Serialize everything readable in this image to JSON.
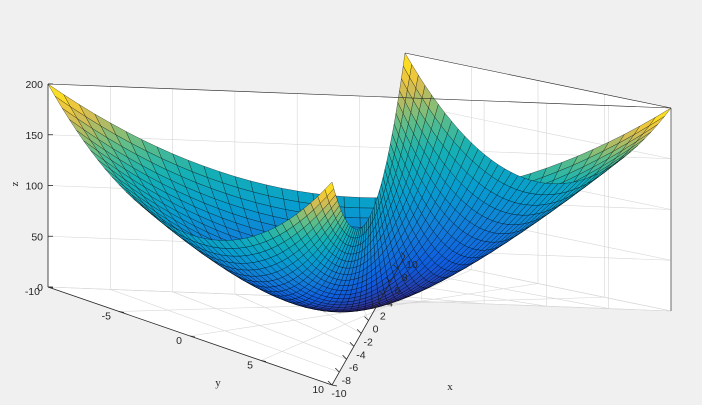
{
  "chart_data": {
    "type": "surface",
    "function": "z = x^2 + y^2",
    "colormap": "parula",
    "grid": true,
    "x": {
      "label": "x",
      "range": [
        -10,
        10
      ],
      "ticks": [
        -10,
        -8,
        -6,
        -4,
        -2,
        0,
        2,
        4,
        6,
        8,
        10
      ],
      "step": 0.5
    },
    "y": {
      "label": "y",
      "range": [
        -10,
        10
      ],
      "ticks": [
        -10,
        -5,
        0,
        5,
        10
      ],
      "step": 0.5
    },
    "z": {
      "label": "z",
      "range": [
        0,
        200
      ],
      "ticks": [
        0,
        50,
        100,
        150,
        200
      ]
    },
    "corner_values": [
      {
        "x": -10,
        "y": -10,
        "z": 200
      },
      {
        "x": -10,
        "y": 10,
        "z": 200
      },
      {
        "x": 10,
        "y": -10,
        "z": 200
      },
      {
        "x": 10,
        "y": 10,
        "z": 200
      }
    ],
    "minimum": {
      "x": 0,
      "y": 0,
      "z": 0
    },
    "colors": {
      "background": "#f0f0f0",
      "axes_box": "#262626",
      "gridline": "#d6d6d6",
      "mesh_edge": "#000000"
    }
  }
}
